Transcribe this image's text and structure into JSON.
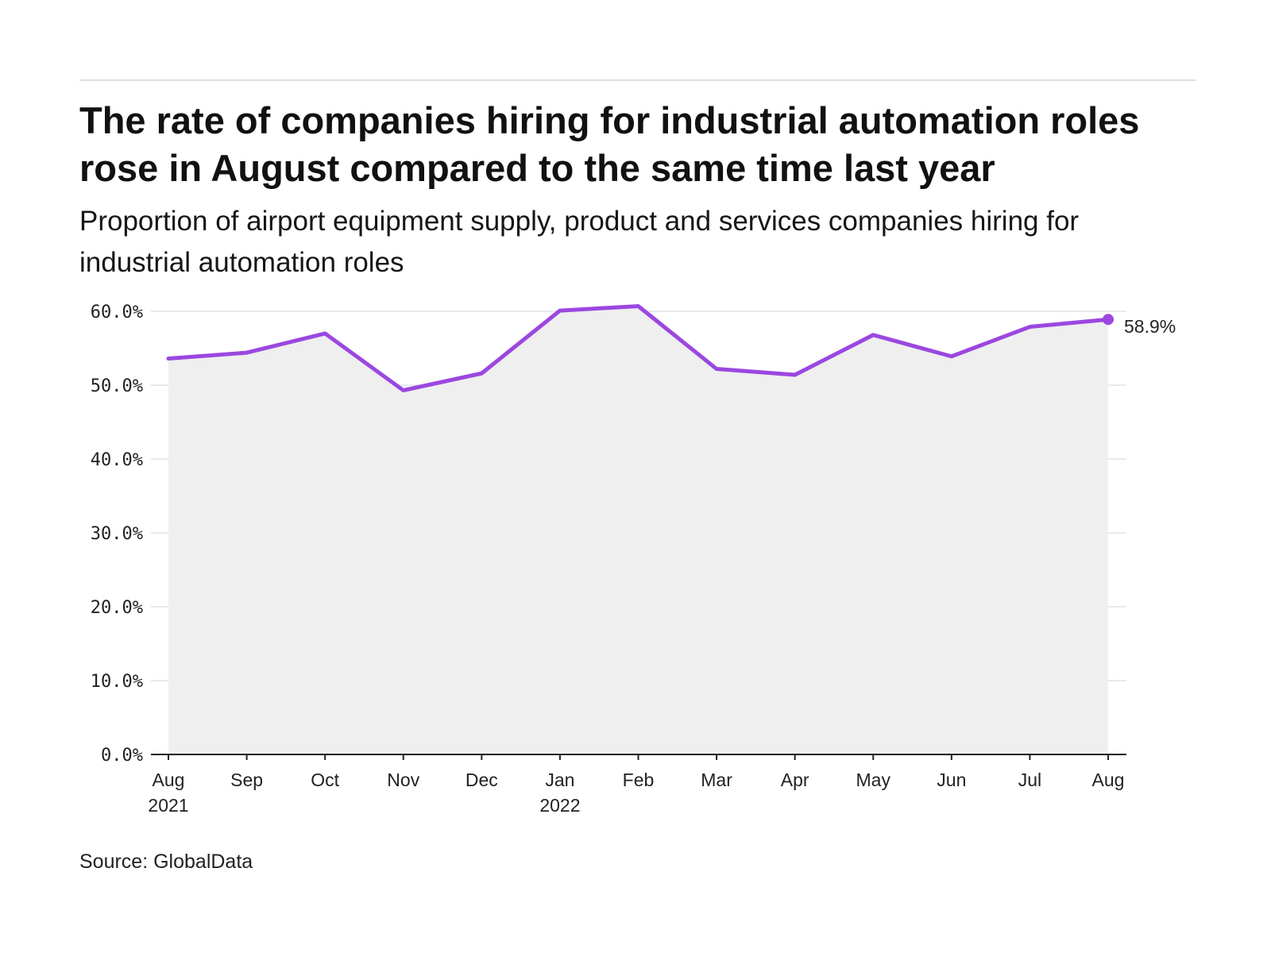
{
  "title": "The rate of companies hiring for industrial automation roles rose in August compared to the same time last year",
  "subtitle": "Proportion of airport equipment supply, product and services companies hiring for industrial automation roles",
  "source": "Source: GlobalData",
  "colors": {
    "line": "#9b47e0",
    "area": "#efefef",
    "grid": "#e2e2e2",
    "axis": "#222222"
  },
  "chart_data": {
    "type": "line",
    "title": "The rate of companies hiring for industrial automation roles rose in August compared to the same time last year",
    "subtitle": "Proportion of airport equipment supply, product and services companies hiring for industrial automation roles",
    "categories": [
      "Aug 2021",
      "Sep 2021",
      "Oct 2021",
      "Nov 2021",
      "Dec 2021",
      "Jan 2022",
      "Feb 2022",
      "Mar 2022",
      "Apr 2022",
      "May 2022",
      "Jun 2022",
      "Jul 2022",
      "Aug 2022"
    ],
    "x_tick_labels": [
      [
        "Aug",
        "2021"
      ],
      [
        "Sep"
      ],
      [
        "Oct"
      ],
      [
        "Nov"
      ],
      [
        "Dec"
      ],
      [
        "Jan",
        "2022"
      ],
      [
        "Feb"
      ],
      [
        "Mar"
      ],
      [
        "Apr"
      ],
      [
        "May"
      ],
      [
        "Jun"
      ],
      [
        "Jul"
      ],
      [
        "Aug"
      ]
    ],
    "values": [
      53.6,
      54.4,
      57.0,
      49.3,
      51.6,
      60.1,
      60.7,
      52.2,
      51.4,
      56.8,
      53.9,
      57.9,
      58.9
    ],
    "y_tick_labels": [
      "0.0%",
      "10.0%",
      "20.0%",
      "30.0%",
      "40.0%",
      "50.0%",
      "60.0%"
    ],
    "ylim": [
      0,
      60
    ],
    "xlabel": "",
    "ylabel": "",
    "grid": true,
    "area_fill": true,
    "end_label": "58.9%",
    "legend": "none"
  }
}
